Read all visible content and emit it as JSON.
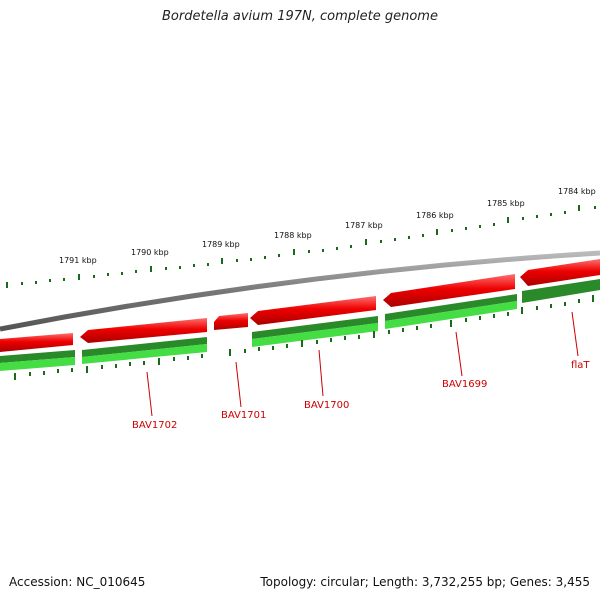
{
  "title": "Bordetella avium 197N, complete genome",
  "footer": {
    "accession": "Accession: NC_010645",
    "summary": "Topology: circular; Length: 3,732,255 bp; Genes: 3,455"
  },
  "colors": {
    "backbone": "#888888",
    "forward_gene": "#dd0000",
    "forward_gene_highlight": "#ff5555",
    "cds_dark": "#2a8a2a",
    "cds_light": "#44dd44",
    "tick": "#1a6a1a",
    "label": "#cc0000"
  },
  "ticks": [
    "1791 kbp",
    "1790 kbp",
    "1789 kbp",
    "1788 kbp",
    "1787 kbp",
    "1786 kbp",
    "1785 kbp",
    "1784 kbp"
  ],
  "genes": [
    "BAV1702",
    "BAV1701",
    "BAV1700",
    "BAV1699",
    "flaT"
  ]
}
